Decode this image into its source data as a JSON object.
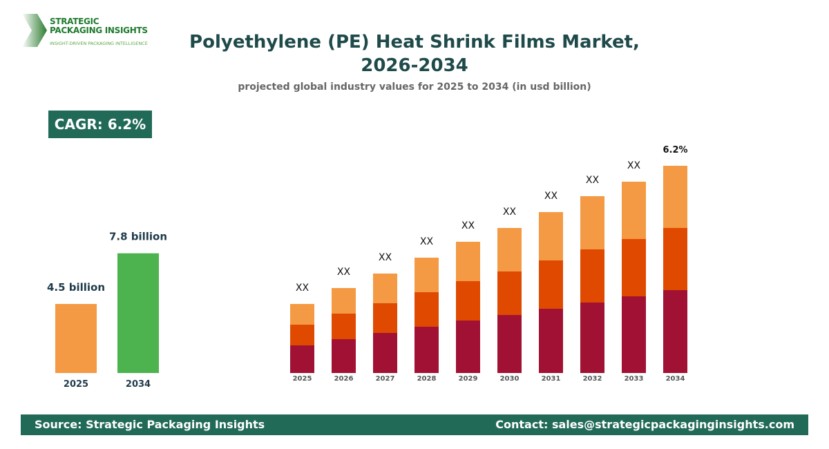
{
  "logo": {
    "line1": "STRATEGIC",
    "line2": "PACKAGING INSIGHTS",
    "tagline": "INSIGHT-DRIVEN PACKAGING INTELLIGENCE"
  },
  "title": "Polyethylene (PE) Heat Shrink Films Market, 2026-2034",
  "subtitle": "projected global industry values for 2025 to 2034 (in usd billion)",
  "cagr": "CAGR: 6.2%",
  "footer": {
    "source": "Source: Strategic Packaging Insights",
    "contact": "Contact: sales@strategicpackaginginsights.com"
  },
  "chart_data": [
    {
      "type": "bar",
      "categories": [
        "2025",
        "2034"
      ],
      "values": [
        4.5,
        7.8
      ],
      "data_labels": [
        "4.5 billion",
        "7.8 billion"
      ],
      "colors": [
        "#f49a44",
        "#4cb34f"
      ],
      "grid": false
    },
    {
      "type": "bar",
      "stacked": true,
      "categories": [
        "2025",
        "2026",
        "2027",
        "2028",
        "2029",
        "2030",
        "2031",
        "2032",
        "2033",
        "2034"
      ],
      "series": [
        {
          "color": "#a11133",
          "values": [
            40,
            49,
            58,
            67,
            76,
            84,
            93,
            102,
            111,
            120
          ]
        },
        {
          "color": "#e04a00",
          "values": [
            30,
            37,
            43,
            50,
            57,
            63,
            70,
            77,
            83,
            90
          ]
        },
        {
          "color": "#f49a44",
          "values": [
            30,
            37,
            43,
            50,
            57,
            63,
            70,
            77,
            83,
            90
          ]
        }
      ],
      "data_labels": [
        "XX",
        "XX",
        "XX",
        "XX",
        "XX",
        "XX",
        "XX",
        "XX",
        "XX",
        "6.2%"
      ],
      "grid": false
    }
  ]
}
